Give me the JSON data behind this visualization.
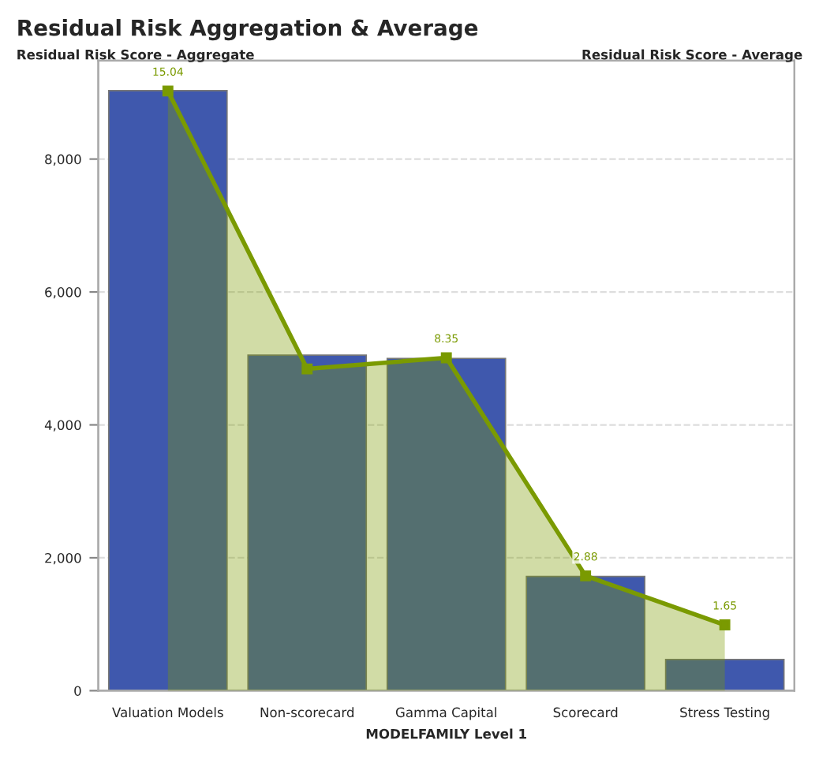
{
  "chart_data": {
    "type": "bar",
    "title": "Residual Risk Aggregation & Average",
    "ylabel": "Residual Risk Score - Aggregate",
    "y2label": "Residual Risk Score - Average",
    "xlabel": "MODELFAMILY Level 1",
    "categories": [
      "Valuation Models",
      "Non-scorecard",
      "Gamma Capital",
      "Scorecard",
      "Stress Testing"
    ],
    "series": [
      {
        "color": "#3f58ad",
        "values": [
          9030,
          5050,
          5000,
          1720,
          470
        ]
      },
      {
        "type": "area",
        "axis": "y2",
        "color": "#7a9a01",
        "values": [
          15.04,
          8.07,
          8.35,
          2.88,
          1.65
        ],
        "value_labels": [
          "15.04",
          null,
          "8.35",
          "2.88",
          "1.65"
        ]
      }
    ],
    "ylim": [
      0,
      9480
    ],
    "yticks": [
      0,
      {
        "value": 2000,
        "label": "2,000"
      },
      {
        "value": 4000,
        "label": "4,000"
      },
      {
        "value": 6000,
        "label": "6,000"
      },
      {
        "value": 8000,
        "label": "8,000"
      }
    ],
    "y2lim": [
      0,
      15.8
    ],
    "tick_labels": "xy",
    "grid": "y",
    "marker": "square",
    "legend": false
  }
}
